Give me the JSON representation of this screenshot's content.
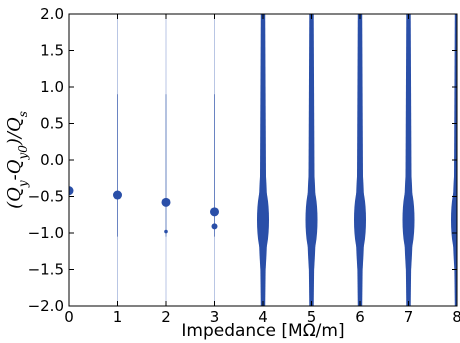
{
  "chart_data": {
    "type": "scatter",
    "title": "",
    "xlabel": "Impedance [MΩ/m]",
    "ylabel": {
      "text": "(Q",
      "sub1": "y",
      "mid": "-Q",
      "sub2": "y0",
      "end": ")/Q",
      "sub3": "s"
    },
    "xlim": [
      0,
      8
    ],
    "ylim": [
      -2.0,
      2.0
    ],
    "x_ticks": [
      0,
      1,
      2,
      3,
      4,
      5,
      6,
      7,
      8
    ],
    "x_tick_labels": [
      "0",
      "1",
      "2",
      "3",
      "4",
      "5",
      "6",
      "7",
      "8"
    ],
    "y_ticks": [
      2.0,
      1.5,
      1.0,
      0.5,
      0.0,
      -0.5,
      -1.0,
      -1.5,
      -2.0
    ],
    "y_tick_labels": [
      "2.0",
      "1.5",
      "1.0",
      "0.5",
      "0.0",
      "−0.5",
      "−1.0",
      "−1.5",
      "−2.0"
    ],
    "grid": false,
    "series_color": "#2a4fa8",
    "thin_line_color": "#b9c6e4",
    "stalks": [
      {
        "x": 0,
        "y_range": [
          -2.0,
          2.0
        ],
        "thickness": "thin"
      },
      {
        "x": 1,
        "y_range": [
          -2.0,
          2.0
        ],
        "thickness": "thin"
      },
      {
        "x": 2,
        "y_range": [
          -2.0,
          2.0
        ],
        "thickness": "thin"
      },
      {
        "x": 3,
        "y_range": [
          -2.0,
          2.0
        ],
        "thickness": "thin"
      },
      {
        "x": 4,
        "y_range": [
          -2.0,
          2.0
        ],
        "thickness": "thick"
      },
      {
        "x": 5,
        "y_range": [
          -2.0,
          2.0
        ],
        "thickness": "thick"
      },
      {
        "x": 6,
        "y_range": [
          -2.0,
          2.0
        ],
        "thickness": "thick"
      },
      {
        "x": 7,
        "y_range": [
          -2.0,
          2.0
        ],
        "thickness": "thick"
      },
      {
        "x": 8,
        "y_range": [
          -2.0,
          2.0
        ],
        "thickness": "thick"
      }
    ],
    "points": [
      {
        "x": 0,
        "y": -0.42,
        "size": "large"
      },
      {
        "x": 1,
        "y": -0.48,
        "size": "large"
      },
      {
        "x": 2,
        "y": -0.58,
        "size": "large"
      },
      {
        "x": 2,
        "y": -0.98,
        "size": "small"
      },
      {
        "x": 3,
        "y": -0.71,
        "size": "large"
      },
      {
        "x": 3,
        "y": -0.91,
        "size": "medium"
      },
      {
        "x": 4,
        "y": -0.82,
        "size": "blob"
      },
      {
        "x": 5,
        "y": -0.82,
        "size": "blob"
      },
      {
        "x": 6,
        "y": -0.82,
        "size": "blob"
      },
      {
        "x": 7,
        "y": -0.82,
        "size": "blob"
      },
      {
        "x": 8,
        "y": -0.82,
        "size": "blob"
      }
    ]
  }
}
